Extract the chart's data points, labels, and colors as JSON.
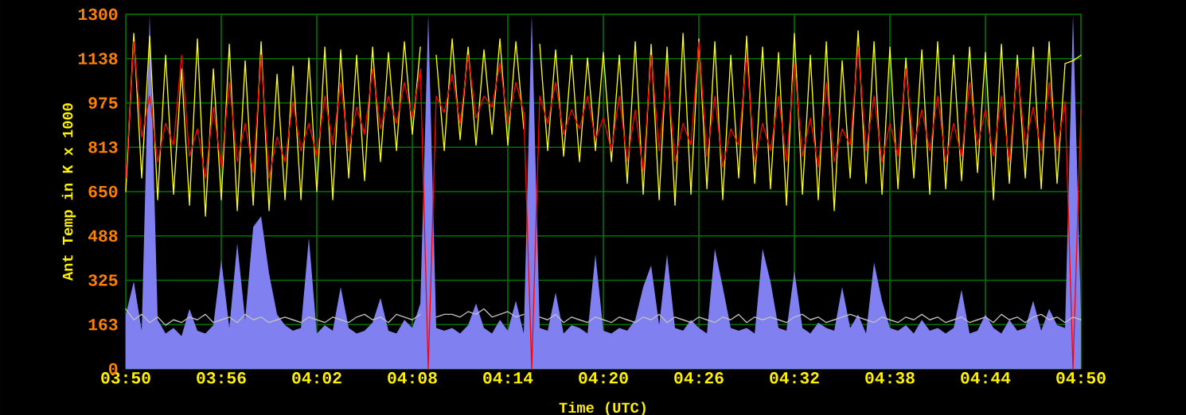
{
  "chart_data": {
    "type": "line",
    "xlabel": "Time (UTC)",
    "ylabel": "Ant Temp in K x 1000",
    "x": [
      3.8333,
      3.8417,
      3.85,
      3.8583,
      3.8667,
      3.875,
      3.8833,
      3.8917,
      3.9,
      3.9083,
      3.9167,
      3.925,
      3.9333,
      3.9417,
      3.95,
      3.9583,
      3.9667,
      3.975,
      3.9833,
      3.9917,
      4.0,
      4.0083,
      4.0167,
      4.025,
      4.0333,
      4.0417,
      4.05,
      4.0583,
      4.0667,
      4.075,
      4.0833,
      4.0917,
      4.1,
      4.1083,
      4.1167,
      4.125,
      4.1333,
      4.1417,
      4.15,
      4.1583,
      4.1667,
      4.175,
      4.1833,
      4.1917,
      4.2,
      4.2083,
      4.2167,
      4.225,
      4.2333,
      4.2417,
      4.25,
      4.2583,
      4.2667,
      4.275,
      4.2833,
      4.2917,
      4.3,
      4.3083,
      4.3167,
      4.325,
      4.3333,
      4.3417,
      4.35,
      4.3583,
      4.3667,
      4.375,
      4.3833,
      4.3917,
      4.4,
      4.4083,
      4.4167,
      4.425,
      4.4333,
      4.4417,
      4.45,
      4.4583,
      4.4667,
      4.475,
      4.4833,
      4.4917,
      4.5,
      4.5083,
      4.5167,
      4.525,
      4.5333,
      4.5417,
      4.55,
      4.5583,
      4.5667,
      4.575,
      4.5833,
      4.5917,
      4.6,
      4.6083,
      4.6167,
      4.625,
      4.6333,
      4.6417,
      4.65,
      4.6583,
      4.6667,
      4.675,
      4.6833,
      4.6917,
      4.7,
      4.7083,
      4.7167,
      4.725,
      4.7333,
      4.7417,
      4.75,
      4.7583,
      4.7667,
      4.775,
      4.7833,
      4.7917,
      4.8,
      4.8083,
      4.8167,
      4.825,
      4.8333
    ],
    "series": [
      {
        "color": "#ffff00",
        "values": [
          650,
          1230,
          700,
          1220,
          620,
          1150,
          640,
          1100,
          600,
          1210,
          560,
          1100,
          620,
          1190,
          580,
          1130,
          600,
          1200,
          580,
          1080,
          620,
          1110,
          620,
          1140,
          650,
          1180,
          620,
          1170,
          700,
          1150,
          690,
          1180,
          760,
          1160,
          800,
          1200,
          860,
          1180,
          null,
          1150,
          800,
          1210,
          840,
          1180,
          820,
          1170,
          860,
          1210,
          820,
          1200,
          880,
          null,
          1190,
          800,
          1170,
          780,
          1150,
          760,
          1140,
          800,
          1160,
          760,
          1150,
          680,
          1200,
          640,
          1190,
          620,
          1180,
          600,
          1230,
          640,
          1210,
          660,
          1200,
          620,
          1150,
          700,
          1220,
          680,
          1180,
          660,
          1160,
          600,
          1230,
          640,
          1150,
          620,
          1200,
          580,
          1130,
          700,
          1240,
          680,
          1200,
          640,
          1180,
          660,
          1140,
          700,
          1170,
          640,
          1200,
          660,
          1150,
          690,
          1180,
          720,
          1160,
          620,
          1190,
          680,
          1150,
          700,
          1180,
          660,
          1200,
          680,
          1120,
          1130,
          1150
        ]
      },
      {
        "color": "#ff0000",
        "values": [
          700,
          1200,
          850,
          1000,
          760,
          900,
          820,
          1150,
          780,
          880,
          700,
          960,
          740,
          1050,
          760,
          900,
          720,
          1150,
          700,
          850,
          760,
          980,
          800,
          900,
          780,
          1000,
          820,
          1050,
          800,
          960,
          860,
          1100,
          880,
          1000,
          900,
          1050,
          920,
          1100,
          0,
          1000,
          940,
          1080,
          900,
          1150,
          920,
          1000,
          960,
          1120,
          900,
          1050,
          940,
          0,
          1000,
          900,
          1050,
          860,
          950,
          880,
          1000,
          840,
          920,
          800,
          1000,
          760,
          950,
          720,
          1150,
          800,
          1100,
          760,
          900,
          820,
          1200,
          780,
          1000,
          740,
          880,
          820,
          1150,
          760,
          900,
          800,
          1000,
          760,
          1120,
          780,
          920,
          740,
          1050,
          760,
          880,
          820,
          1180,
          800,
          1000,
          760,
          900,
          780,
          1100,
          820,
          950,
          800,
          1000,
          760,
          900,
          780,
          1050,
          820,
          950,
          780,
          1000,
          760,
          1100,
          820,
          960,
          800,
          1050,
          800,
          980,
          0,
          950
        ]
      },
      {
        "type": "area",
        "color": "#8080f0",
        "values": [
          200,
          320,
          140,
          1300,
          180,
          130,
          150,
          120,
          220,
          140,
          130,
          160,
          400,
          150,
          460,
          180,
          520,
          560,
          350,
          200,
          160,
          140,
          150,
          480,
          130,
          160,
          140,
          300,
          150,
          130,
          140,
          170,
          260,
          140,
          130,
          180,
          150,
          240,
          1300,
          150,
          140,
          150,
          130,
          160,
          240,
          150,
          130,
          180,
          140,
          250,
          130,
          1300,
          150,
          140,
          280,
          130,
          160,
          150,
          130,
          420,
          140,
          130,
          150,
          140,
          180,
          300,
          380,
          160,
          420,
          150,
          140,
          180,
          150,
          130,
          440,
          300,
          150,
          140,
          150,
          130,
          440,
          320,
          150,
          140,
          360,
          150,
          130,
          170,
          150,
          140,
          300,
          150,
          200,
          130,
          390,
          250,
          150,
          140,
          160,
          130,
          180,
          140,
          150,
          130,
          150,
          290,
          130,
          140,
          200,
          150,
          130,
          180,
          140,
          150,
          250,
          140,
          220,
          160,
          150,
          1300,
          200
        ]
      },
      {
        "color": "#c0c0c0",
        "values": [
          220,
          180,
          200,
          170,
          190,
          160,
          180,
          170,
          190,
          180,
          200,
          170,
          180,
          190,
          170,
          200,
          180,
          190,
          170,
          180,
          190,
          180,
          170,
          190,
          180,
          170,
          190,
          180,
          170,
          190,
          200,
          180,
          190,
          170,
          200,
          190,
          180,
          200,
          null,
          190,
          200,
          200,
          190,
          210,
          200,
          220,
          190,
          200,
          210,
          190,
          200,
          null,
          190,
          180,
          200,
          170,
          190,
          180,
          170,
          190,
          180,
          170,
          190,
          180,
          170,
          190,
          180,
          200,
          170,
          190,
          180,
          170,
          190,
          180,
          170,
          190,
          180,
          200,
          170,
          190,
          180,
          190,
          180,
          170,
          190,
          200,
          180,
          190,
          170,
          180,
          190,
          200,
          190,
          180,
          170,
          190,
          180,
          170,
          190,
          180,
          200,
          180,
          190,
          170,
          180,
          190,
          170,
          180,
          190,
          170,
          200,
          180,
          190,
          170,
          190,
          200,
          180,
          190,
          170,
          190,
          180
        ]
      }
    ],
    "xlim": [
      3.8333,
      4.8333
    ],
    "xticks": [
      {
        "value": 3.8333,
        "label": "03:50"
      },
      {
        "value": 3.9333,
        "label": "03:56"
      },
      {
        "value": 4.0333,
        "label": "04:02"
      },
      {
        "value": 4.1333,
        "label": "04:08"
      },
      {
        "value": 4.2333,
        "label": "04:14"
      },
      {
        "value": 4.3333,
        "label": "04:20"
      },
      {
        "value": 4.4333,
        "label": "04:26"
      },
      {
        "value": 4.5333,
        "label": "04:32"
      },
      {
        "value": 4.6333,
        "label": "04:38"
      },
      {
        "value": 4.7333,
        "label": "04:44"
      },
      {
        "value": 4.8333,
        "label": "04:50"
      }
    ],
    "ylim": [
      0,
      1300
    ],
    "yticks": [
      0,
      {
        "value": 162.5,
        "label": "163"
      },
      325,
      {
        "value": 487.5,
        "label": "488"
      },
      650,
      {
        "value": 812.5,
        "label": "813"
      },
      975,
      {
        "value": 1137.5,
        "label": "1138"
      },
      1300
    ],
    "grid": true,
    "marker": "none",
    "line_style": "solid"
  }
}
